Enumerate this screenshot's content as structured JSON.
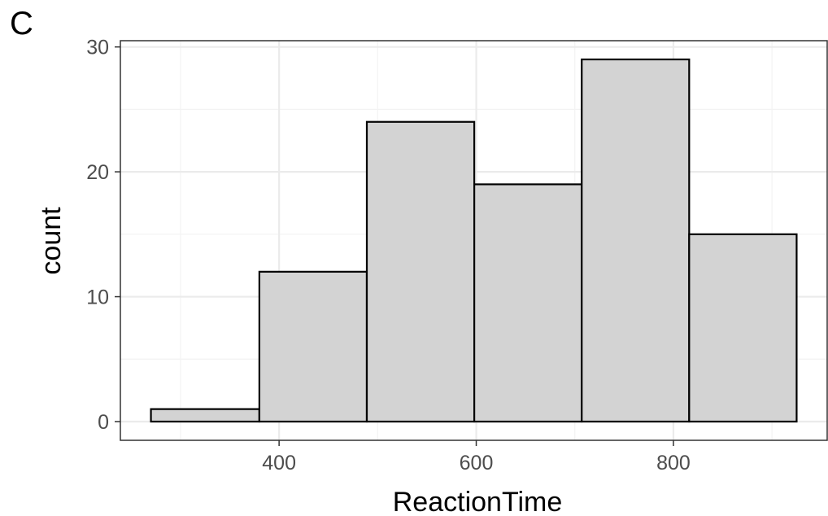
{
  "panel_label": "C",
  "colors": {
    "bar_fill": "#d3d3d3",
    "bar_stroke": "#000000",
    "grid_major": "#ebebeb",
    "grid_minor": "#f3f3f3",
    "panel_border": "#333333",
    "tick_text": "#4d4d4d"
  },
  "chart_data": {
    "type": "bar",
    "subtype": "histogram",
    "xlabel": "ReactionTime",
    "ylabel": "count",
    "bins": [
      {
        "start": 270,
        "end": 380,
        "count": 1
      },
      {
        "start": 380,
        "end": 489,
        "count": 12
      },
      {
        "start": 489,
        "end": 598,
        "count": 24
      },
      {
        "start": 598,
        "end": 707,
        "count": 19
      },
      {
        "start": 707,
        "end": 816,
        "count": 29
      },
      {
        "start": 816,
        "end": 925,
        "count": 15
      }
    ],
    "xlim": [
      239,
      956
    ],
    "ylim": [
      -1.5,
      30.5
    ],
    "xticks": [
      400,
      600,
      800
    ],
    "xtick_labels": [
      "400",
      "600",
      "800"
    ],
    "xminor": [
      300,
      500,
      700,
      900
    ],
    "yticks": [
      0,
      10,
      20,
      30
    ],
    "ytick_labels": [
      "0",
      "10",
      "20",
      "30"
    ],
    "yminor": [
      5,
      15,
      25
    ],
    "grid": true
  }
}
